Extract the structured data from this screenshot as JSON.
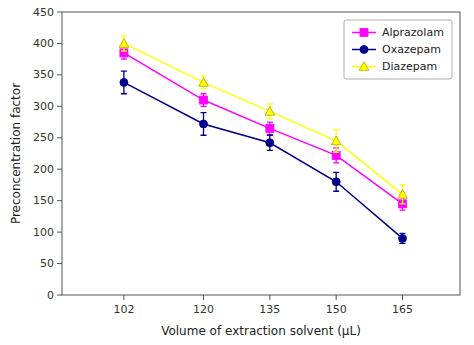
{
  "chart_data": {
    "type": "line",
    "x": [
      102,
      120,
      135,
      150,
      165
    ],
    "series": [
      {
        "name": "Alprazolam",
        "color": "#FF00FF",
        "marker": "square",
        "values": [
          385,
          310,
          265,
          222,
          145
        ],
        "errors": [
          10,
          10,
          10,
          12,
          10
        ]
      },
      {
        "name": "Oxazepam",
        "color": "#00008B",
        "marker": "circle",
        "values": [
          338,
          272,
          242,
          180,
          90
        ],
        "errors": [
          18,
          18,
          12,
          15,
          8
        ]
      },
      {
        "name": "Diazepam",
        "color": "#FFFF00",
        "marker": "triangle",
        "values": [
          400,
          338,
          292,
          245,
          160
        ],
        "errors": [
          12,
          10,
          12,
          18,
          15
        ]
      }
    ],
    "xlabel": "Volume of extraction solvent (μL)",
    "ylabel": "Preconcentration factor",
    "xlim": [
      88,
      178
    ],
    "ylim": [
      0,
      450
    ],
    "xticks": [
      102,
      120,
      135,
      150,
      165
    ],
    "yticks": [
      0,
      50,
      100,
      150,
      200,
      250,
      300,
      350,
      400,
      450
    ],
    "legend": "upper right"
  }
}
